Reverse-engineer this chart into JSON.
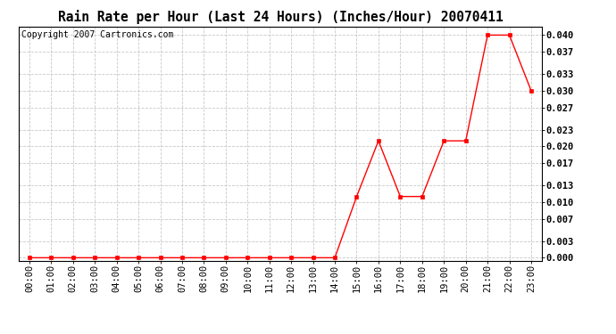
{
  "title": "Rain Rate per Hour (Last 24 Hours) (Inches/Hour) 20070411",
  "copyright": "Copyright 2007 Cartronics.com",
  "x_labels": [
    "00:00",
    "01:00",
    "02:00",
    "03:00",
    "04:00",
    "05:00",
    "06:00",
    "07:00",
    "08:00",
    "09:00",
    "10:00",
    "11:00",
    "12:00",
    "13:00",
    "14:00",
    "15:00",
    "16:00",
    "17:00",
    "18:00",
    "19:00",
    "20:00",
    "21:00",
    "22:00",
    "23:00"
  ],
  "y_values": [
    0.0,
    0.0,
    0.0,
    0.0,
    0.0,
    0.0,
    0.0,
    0.0,
    0.0,
    0.0,
    0.0,
    0.0,
    0.0,
    0.0,
    0.0,
    0.011,
    0.021,
    0.011,
    0.011,
    0.021,
    0.021,
    0.04,
    0.04,
    0.03
  ],
  "line_color": "#ff0000",
  "marker": "s",
  "marker_size": 2.5,
  "bg_color": "#ffffff",
  "grid_color": "#c8c8c8",
  "ylim": [
    -0.0005,
    0.0415
  ],
  "yticks": [
    0.0,
    0.003,
    0.007,
    0.01,
    0.013,
    0.017,
    0.02,
    0.023,
    0.027,
    0.03,
    0.033,
    0.037,
    0.04
  ],
  "title_fontsize": 10.5,
  "copyright_fontsize": 7,
  "tick_fontsize": 7.5
}
